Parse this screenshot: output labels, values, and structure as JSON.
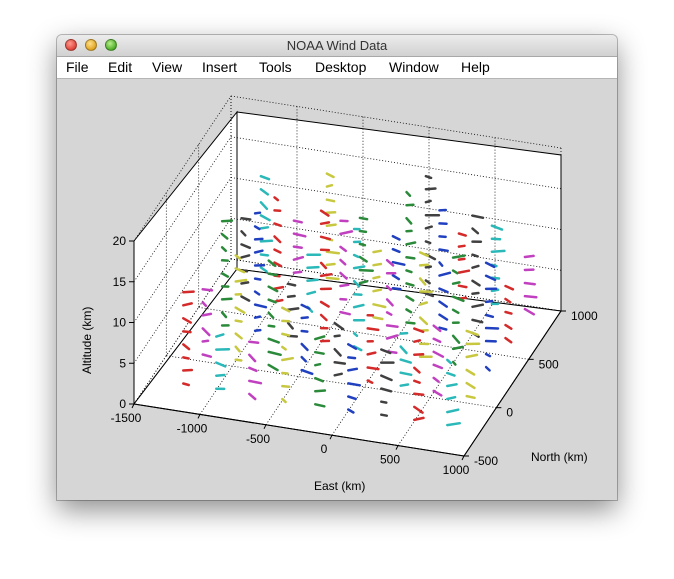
{
  "window": {
    "title": "NOAA Wind Data"
  },
  "menu": [
    "File",
    "Edit",
    "View",
    "Insert",
    "Tools",
    "Desktop",
    "Window",
    "Help"
  ],
  "chart_data": {
    "type": "quiver3",
    "xlabel": "East (km)",
    "ylabel": "North (km)",
    "zlabel": "Altitude (km)",
    "xticks": [
      "-1500",
      "-1000",
      "-500",
      "0",
      "500",
      "1000"
    ],
    "yticks": [
      "-500",
      "0",
      "500",
      "1000"
    ],
    "zticks": [
      "0",
      "5",
      "10",
      "15",
      "20"
    ],
    "xlim": [
      -1500,
      1000
    ],
    "ylim": [
      -500,
      1000
    ],
    "zlim": [
      0,
      20
    ],
    "grid": true,
    "colors": [
      "#d42a2a",
      "#2ab8b8",
      "#c040c0",
      "#c8c840",
      "#2a8a3a",
      "#2040c0",
      "#404040"
    ]
  }
}
